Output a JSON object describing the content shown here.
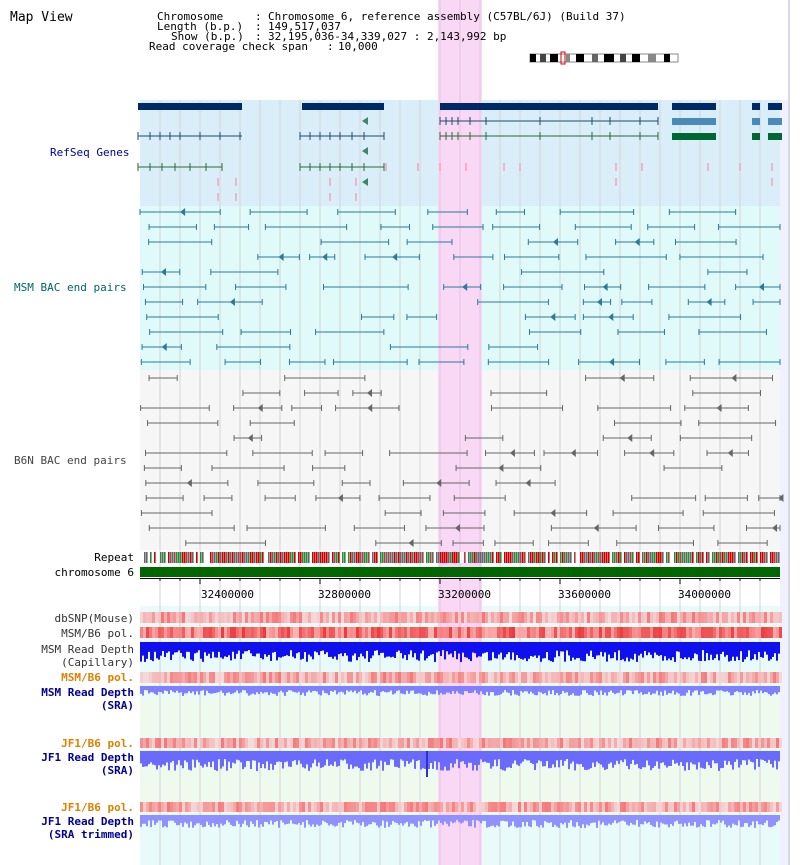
{
  "app_title": "Map View",
  "header": {
    "chromosome_key": "Chromosome",
    "chromosome_val": "Chromosome 6, reference assembly (C57BL/6J) (Build 37)",
    "length_key": "Length (b.p.)",
    "length_val": "149,517,037",
    "show_key": "Show (b.p.)",
    "show_val": "32,195,036-34,339,027 : 2,143,992 bp",
    "coverage_key": "Read coverage check span",
    "coverage_val": "10,000"
  },
  "tracks": {
    "refseq": "RefSeq Genes",
    "msm_bac": "MSM BAC end pairs",
    "b6n_bac": "B6N BAC end pairs",
    "repeat": "Repeat",
    "chromosome": "chromosome 6",
    "dbsnp": "dbSNP(Mouse)",
    "msm_b6_pol_1": "MSM/B6 pol.",
    "msm_depth_cap_1": "MSM Read Depth",
    "msm_depth_cap_2": "(Capillary)",
    "msm_b6_pol_2": "MSM/B6 pol.",
    "msm_depth_sra_1": "MSM Read Depth",
    "msm_depth_sra_2": "(SRA)",
    "jf1_b6_pol_1": "JF1/B6 pol.",
    "jf1_depth_sra_1": "JF1 Read Depth",
    "jf1_depth_sra_2": "(SRA)",
    "jf1_b6_pol_2": "JF1/B6 pol.",
    "jf1_depth_trim_1": "JF1 Read Depth",
    "jf1_depth_trim_2": "(SRA trimmed)"
  },
  "ruler": {
    "ticks": [
      "32400000",
      "32800000",
      "33200000",
      "33600000",
      "34000000"
    ]
  },
  "colors": {
    "refseq_label": "#000099",
    "msm_label": "#006666",
    "b6n_label": "#444444",
    "orange_label": "#e08000",
    "highlight": "#f8d8f4",
    "chromosome_bar": "#006600"
  }
}
